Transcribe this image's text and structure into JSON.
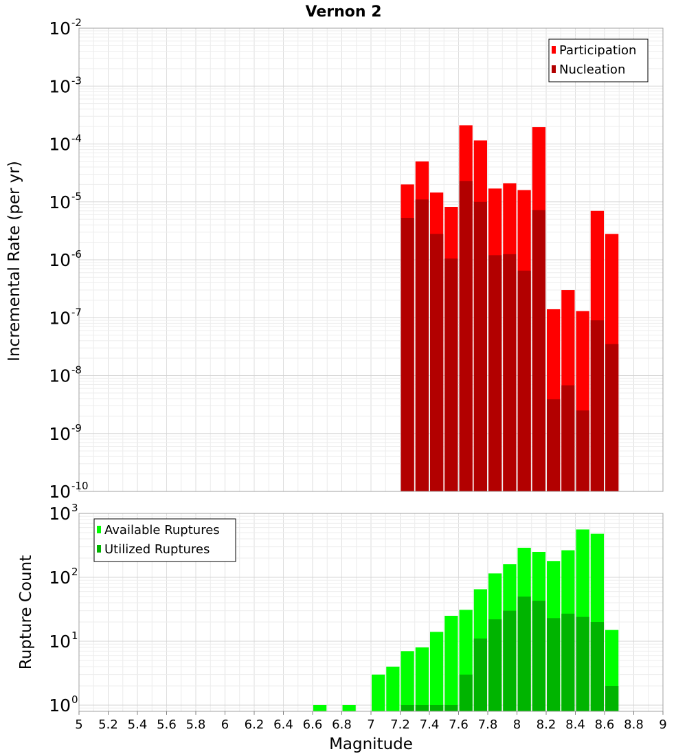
{
  "chart_data": {
    "type": "bar",
    "title": "Vernon 2",
    "xlabel": "Magnitude",
    "x_ticks": [
      "5",
      "5.2",
      "5.4",
      "5.6",
      "5.8",
      "6",
      "6.2",
      "6.4",
      "6.6",
      "6.8",
      "7",
      "7.2",
      "7.4",
      "7.6",
      "7.8",
      "8",
      "8.2",
      "8.4",
      "8.6",
      "8.8",
      "9"
    ],
    "xlim": [
      5,
      9
    ],
    "bin_width": 0.1,
    "panels": [
      {
        "name": "rate",
        "ylabel": "Incremental Rate (per yr)",
        "yscale": "log",
        "ylim": [
          1e-10,
          0.01
        ],
        "y_tick_exponents": [
          "-10",
          "-9",
          "-8",
          "-7",
          "-6",
          "-5",
          "-4",
          "-3",
          "-2"
        ],
        "legend_position": "top-right",
        "series": [
          {
            "name": "Participation",
            "color": "#ff0000",
            "x": [
              7.25,
              7.35,
              7.45,
              7.55,
              7.65,
              7.75,
              7.85,
              7.95,
              8.05,
              8.15,
              8.25,
              8.35,
              8.45,
              8.55,
              8.65
            ],
            "values": [
              2e-05,
              5e-05,
              1.45e-05,
              8.2e-06,
              0.00021,
              0.000115,
              1.7e-05,
              2.1e-05,
              1.6e-05,
              0.000195,
              1.4e-07,
              3e-07,
              1.3e-07,
              7e-06,
              2.8e-06
            ]
          },
          {
            "name": "Nucleation",
            "color": "#b20000",
            "x": [
              7.25,
              7.35,
              7.45,
              7.55,
              7.65,
              7.75,
              7.85,
              7.95,
              8.05,
              8.15,
              8.25,
              8.35,
              8.45,
              8.55,
              8.65
            ],
            "values": [
              5.3e-06,
              1.1e-05,
              2.8e-06,
              1.05e-06,
              2.3e-05,
              1e-05,
              1.2e-06,
              1.25e-06,
              6.5e-07,
              7.2e-06,
              3.9e-09,
              6.8e-09,
              2.5e-09,
              9e-08,
              3.5e-08
            ]
          }
        ]
      },
      {
        "name": "count",
        "ylabel": "Rupture Count",
        "yscale": "log",
        "ylim": [
          0.8,
          1000
        ],
        "y_tick_exponents": [
          "0",
          "1",
          "2",
          "3"
        ],
        "legend_position": "top-left",
        "series": [
          {
            "name": "Available Ruptures",
            "color": "#00ff00",
            "x": [
              6.65,
              6.85,
              7.05,
              7.15,
              7.25,
              7.35,
              7.45,
              7.55,
              7.65,
              7.75,
              7.85,
              7.95,
              8.05,
              8.15,
              8.25,
              8.35,
              8.45,
              8.55,
              8.65
            ],
            "values": [
              1,
              1,
              3,
              4,
              7,
              8,
              14,
              25,
              31,
              65,
              115,
              160,
              290,
              250,
              180,
              265,
              560,
              480,
              15
            ]
          },
          {
            "name": "Utilized Ruptures",
            "color": "#00b400",
            "x": [
              7.25,
              7.35,
              7.45,
              7.55,
              7.65,
              7.75,
              7.85,
              7.95,
              8.05,
              8.15,
              8.25,
              8.35,
              8.45,
              8.55,
              8.65
            ],
            "values": [
              1,
              1,
              1,
              1,
              3,
              11,
              22,
              30,
              50,
              43,
              23,
              27,
              24,
              20,
              2
            ]
          }
        ]
      }
    ]
  }
}
